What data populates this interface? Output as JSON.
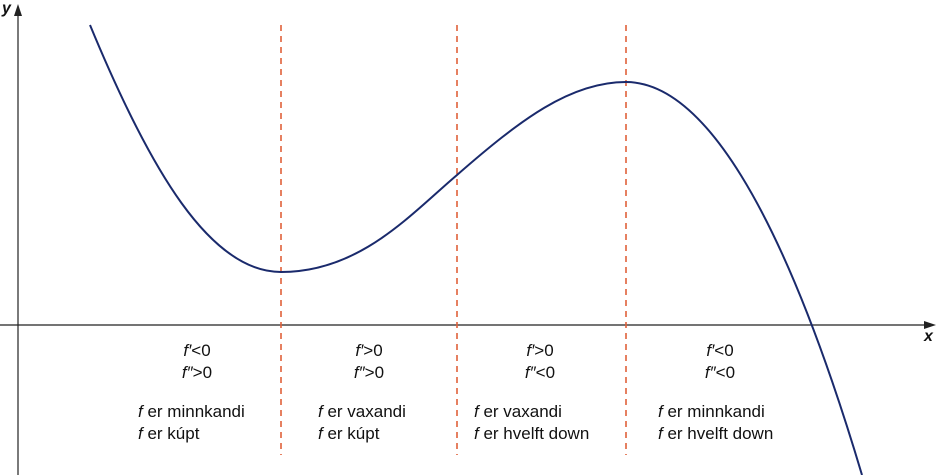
{
  "axes": {
    "x_label": "x",
    "y_label": "y"
  },
  "regions": [
    {
      "first_derivative": "f′<0",
      "second_derivative": "f″>0",
      "monotonic": "f er minnkandi",
      "concavity": "f er kúpt"
    },
    {
      "first_derivative": "f′>0",
      "second_derivative": "f″>0",
      "monotonic": "f er vaxandi",
      "concavity": "f er kúpt"
    },
    {
      "first_derivative": "f′>0",
      "second_derivative": "f″<0",
      "monotonic": "f er vaxandi",
      "concavity": "f er hvelft down"
    },
    {
      "first_derivative": "f′<0",
      "second_derivative": "f″<0",
      "monotonic": "f er minnkandi",
      "concavity": "f er hvelft down"
    }
  ]
}
